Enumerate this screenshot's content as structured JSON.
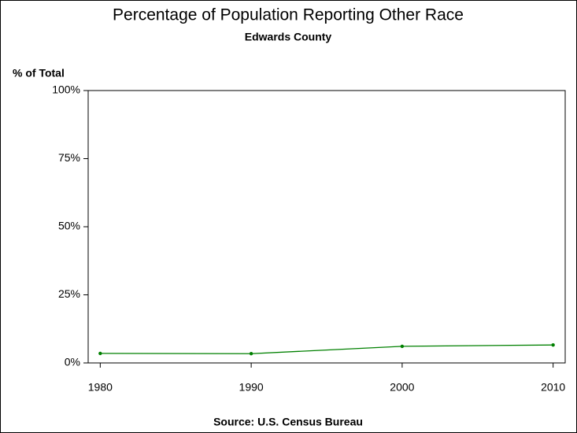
{
  "chart_data": {
    "type": "line",
    "title": "Percentage of Population Reporting Other Race",
    "subtitle": "Edwards County",
    "y_label": "% of Total",
    "source": "Source: U.S. Census Bureau",
    "x": [
      1980,
      1990,
      2000,
      2010
    ],
    "series": [
      {
        "name": "Other Race",
        "color": "#008000",
        "values": [
          3.5,
          3.4,
          6.1,
          6.6
        ]
      }
    ],
    "xlim": [
      1979.2,
      2010.8
    ],
    "xticks": [
      1980,
      1990,
      2000,
      2010
    ],
    "ylim": [
      0,
      100
    ],
    "yticks": [
      {
        "value": 0,
        "label": "0%"
      },
      {
        "value": 25,
        "label": "25%"
      },
      {
        "value": 50,
        "label": "50%"
      },
      {
        "value": 75,
        "label": "75%"
      },
      {
        "value": 100,
        "label": "100%"
      }
    ],
    "grid": false
  }
}
